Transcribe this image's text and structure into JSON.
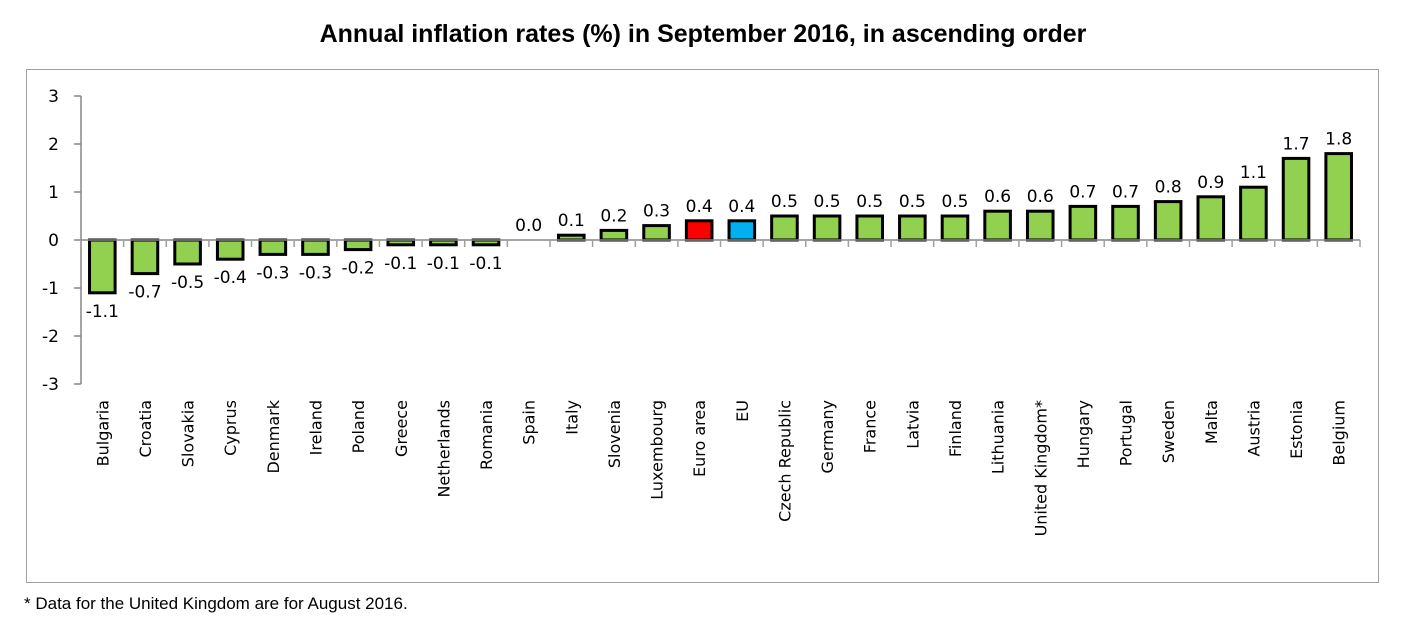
{
  "chart_data": {
    "type": "bar",
    "title": "Annual inflation rates (%) in September 2016, in ascending order",
    "xlabel": "",
    "ylabel": "",
    "ylim": [
      -3,
      3
    ],
    "yticks": [
      3,
      2,
      1,
      0,
      -1,
      -2,
      -3
    ],
    "grid": false,
    "categories": [
      "Bulgaria",
      "Croatia",
      "Slovakia",
      "Cyprus",
      "Denmark",
      "Ireland",
      "Poland",
      "Greece",
      "Netherlands",
      "Romania",
      "Spain",
      "Italy",
      "Slovenia",
      "Luxembourg",
      "Euro area",
      "EU",
      "Czech Republic",
      "Germany",
      "France",
      "Latvia",
      "Finland",
      "Lithuania",
      "United Kingdom*",
      "Hungary",
      "Portugal",
      "Sweden",
      "Malta",
      "Austria",
      "Estonia",
      "Belgium"
    ],
    "values": [
      -1.1,
      -0.7,
      -0.5,
      -0.4,
      -0.3,
      -0.3,
      -0.2,
      -0.1,
      -0.1,
      -0.1,
      0.0,
      0.1,
      0.2,
      0.3,
      0.4,
      0.4,
      0.5,
      0.5,
      0.5,
      0.5,
      0.5,
      0.6,
      0.6,
      0.7,
      0.7,
      0.8,
      0.9,
      1.1,
      1.7,
      1.8
    ],
    "data_labels": [
      "-1.1",
      "-0.7",
      "-0.5",
      "-0.4",
      "-0.3",
      "-0.3",
      "-0.2",
      "-0.1",
      "-0.1",
      "-0.1",
      "0.0",
      "0.1",
      "0.2",
      "0.3",
      "0.4",
      "0.4",
      "0.5",
      "0.5",
      "0.5",
      "0.5",
      "0.5",
      "0.6",
      "0.6",
      "0.7",
      "0.7",
      "0.8",
      "0.9",
      "1.1",
      "1.7",
      "1.8"
    ],
    "colors": {
      "default": "#92D050",
      "Euro area": "#FF0000",
      "EU": "#00B0F0"
    }
  },
  "footnote": "* Data for the United Kingdom are for August 2016."
}
